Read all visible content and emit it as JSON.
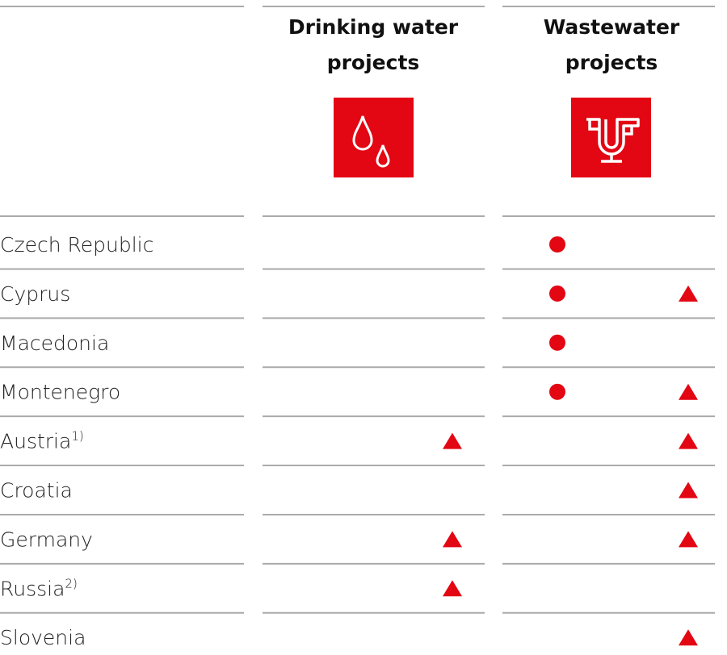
{
  "header": {
    "columns": [
      "Drinking water projects",
      "Wastewater projects"
    ]
  },
  "rows": [
    {
      "country": "Czech Republic",
      "drinking": [
        false,
        false
      ],
      "wastewater": [
        true,
        false
      ]
    },
    {
      "country": "Cyprus",
      "drinking": [
        false,
        false
      ],
      "wastewater": [
        true,
        true
      ]
    },
    {
      "country": "Macedonia",
      "drinking": [
        false,
        false
      ],
      "wastewater": [
        true,
        false
      ]
    },
    {
      "country": "Montenegro",
      "drinking": [
        false,
        false
      ],
      "wastewater": [
        true,
        true
      ]
    },
    {
      "country": "Austria",
      "note": "1)",
      "drinking": [
        false,
        true
      ],
      "wastewater": [
        false,
        true
      ]
    },
    {
      "country": "Croatia",
      "drinking": [
        false,
        false
      ],
      "wastewater": [
        false,
        true
      ]
    },
    {
      "country": "Germany",
      "drinking": [
        false,
        true
      ],
      "wastewater": [
        false,
        true
      ]
    },
    {
      "country": "Russia",
      "note": "2)",
      "drinking": [
        false,
        true
      ],
      "wastewater": [
        false,
        false
      ]
    },
    {
      "country": "Slovenia",
      "drinking": [
        false,
        false
      ],
      "wastewater": [
        false,
        true
      ]
    }
  ]
}
